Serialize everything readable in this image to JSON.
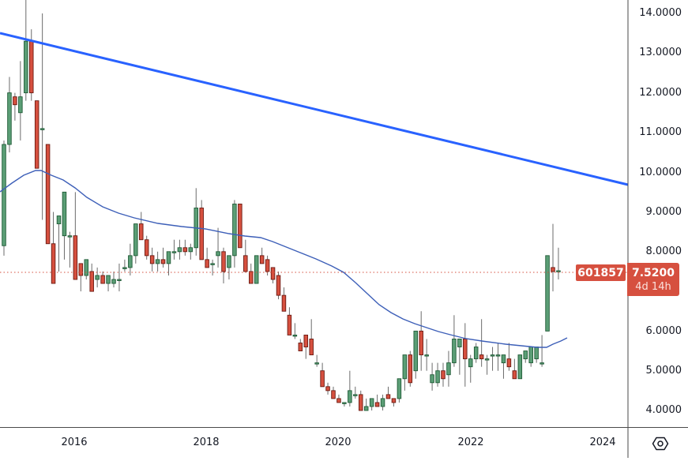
{
  "symbol": "601857",
  "last_price": "7.5200",
  "countdown": "4d 14h",
  "colors": {
    "up": "#5b9e76",
    "up_border": "#1f5b36",
    "down": "#d6503f",
    "down_border": "#6b1a12",
    "wick": "#6b6b6b",
    "trendline": "#2962ff",
    "ma": "#3d5fb8",
    "last_price_line": "#d6503f",
    "axis": "#4a4a4a"
  },
  "price_axis": {
    "labels": [
      "14.0000",
      "13.0000",
      "12.0000",
      "11.0000",
      "10.0000",
      "9.0000",
      "8.0000",
      "6.0000",
      "5.0000",
      "4.0000"
    ]
  },
  "time_axis": {
    "labels": [
      "2016",
      "2018",
      "2020",
      "2022",
      "2024"
    ]
  },
  "settings_icon": "gear-hexagon-icon",
  "chart_data": {
    "type": "candlestick",
    "title": "601857",
    "interval": "1M",
    "ylim": [
      3.7,
      14.3
    ],
    "y_ticks": [
      4,
      5,
      6,
      8,
      9,
      10,
      11,
      12,
      13,
      14
    ],
    "x_ticks": [
      "2016",
      "2018",
      "2020",
      "2022",
      "2024"
    ],
    "grid": false,
    "last_price": 7.52,
    "start": "2015-01",
    "candles": [
      [
        8.15,
        10.8,
        7.9,
        10.7
      ],
      [
        10.7,
        12.4,
        10.5,
        12.0
      ],
      [
        11.9,
        12.0,
        11.3,
        11.7
      ],
      [
        11.5,
        12.8,
        10.8,
        11.9
      ],
      [
        12.0,
        14.4,
        11.8,
        13.3
      ],
      [
        13.3,
        13.6,
        11.8,
        12.0
      ],
      [
        11.8,
        11.7,
        10.9,
        10.1
      ],
      [
        11.1,
        14.0,
        8.8,
        11.1
      ],
      [
        10.7,
        9.0,
        8.3,
        8.2
      ],
      [
        8.2,
        9.0,
        7.2,
        7.2
      ],
      [
        8.7,
        8.4,
        7.5,
        8.9
      ],
      [
        8.4,
        8.2,
        7.8,
        9.5
      ],
      [
        8.4,
        8.5,
        7.6,
        8.4
      ],
      [
        8.4,
        9.5,
        8.0,
        7.3
      ],
      [
        7.7,
        7.7,
        7.0,
        7.4
      ],
      [
        7.4,
        7.6,
        7.3,
        7.8
      ],
      [
        7.5,
        7.7,
        7.3,
        7.0
      ],
      [
        7.3,
        7.6,
        7.1,
        7.4
      ],
      [
        7.4,
        7.5,
        7.2,
        7.2
      ],
      [
        7.2,
        7.3,
        7.0,
        7.4
      ],
      [
        7.2,
        7.5,
        7.1,
        7.3
      ],
      [
        7.3,
        7.7,
        7.0,
        7.3
      ],
      [
        7.6,
        7.8,
        7.5,
        7.6
      ],
      [
        7.6,
        8.2,
        7.4,
        7.9
      ],
      [
        7.9,
        8.5,
        7.7,
        8.7
      ],
      [
        8.7,
        9.0,
        8.3,
        8.3
      ],
      [
        8.3,
        8.4,
        7.8,
        7.9
      ],
      [
        7.9,
        8.1,
        7.5,
        7.7
      ],
      [
        7.7,
        8.0,
        7.5,
        7.8
      ],
      [
        7.8,
        8.1,
        7.6,
        7.7
      ],
      [
        7.7,
        7.9,
        7.4,
        8.0
      ],
      [
        8.0,
        8.3,
        7.8,
        8.0
      ],
      [
        8.0,
        8.3,
        7.8,
        8.1
      ],
      [
        8.1,
        8.3,
        7.9,
        8.0
      ],
      [
        8.0,
        8.2,
        7.8,
        8.1
      ],
      [
        8.1,
        9.6,
        7.9,
        9.1
      ],
      [
        9.1,
        9.3,
        7.9,
        7.8
      ],
      [
        7.8,
        8.1,
        7.6,
        7.6
      ],
      [
        7.7,
        7.8,
        7.4,
        7.7
      ],
      [
        7.9,
        8.6,
        7.6,
        8.0
      ],
      [
        8.0,
        8.1,
        7.2,
        7.5
      ],
      [
        7.6,
        7.8,
        7.3,
        7.9
      ],
      [
        7.9,
        9.3,
        7.6,
        9.2
      ],
      [
        9.2,
        9.1,
        8.3,
        8.1
      ],
      [
        7.9,
        8.3,
        7.8,
        7.5
      ],
      [
        7.5,
        7.7,
        7.2,
        7.2
      ],
      [
        7.2,
        7.4,
        7.2,
        7.9
      ],
      [
        7.9,
        8.1,
        7.7,
        7.7
      ],
      [
        7.8,
        7.9,
        7.4,
        7.5
      ],
      [
        7.6,
        7.6,
        7.2,
        7.3
      ],
      [
        7.4,
        7.5,
        6.8,
        6.9
      ],
      [
        6.9,
        7.1,
        6.5,
        6.5
      ],
      [
        6.4,
        6.6,
        6.0,
        5.9
      ],
      [
        5.9,
        6.2,
        5.8,
        5.9
      ],
      [
        5.7,
        5.8,
        5.5,
        5.5
      ],
      [
        5.9,
        5.6,
        5.3,
        5.6
      ],
      [
        5.8,
        6.3,
        5.6,
        5.4
      ],
      [
        5.2,
        5.4,
        5.1,
        5.2
      ],
      [
        5.0,
        5.2,
        4.8,
        4.6
      ],
      [
        4.6,
        4.7,
        4.4,
        4.5
      ],
      [
        4.5,
        4.6,
        4.3,
        4.3
      ],
      [
        4.3,
        4.4,
        4.2,
        4.2
      ],
      [
        4.2,
        4.2,
        4.1,
        4.2
      ],
      [
        4.2,
        5.0,
        4.1,
        4.5
      ],
      [
        4.4,
        4.6,
        4.3,
        4.4
      ],
      [
        4.4,
        4.5,
        4.1,
        4.0
      ],
      [
        4.0,
        4.3,
        4.0,
        4.1
      ],
      [
        4.1,
        4.3,
        4.0,
        4.3
      ],
      [
        4.2,
        4.4,
        4.1,
        4.1
      ],
      [
        4.1,
        4.4,
        4.0,
        4.3
      ],
      [
        4.4,
        4.6,
        4.3,
        4.3
      ],
      [
        4.3,
        4.3,
        4.1,
        4.2
      ],
      [
        4.3,
        4.8,
        4.2,
        4.8
      ],
      [
        4.8,
        5.4,
        4.5,
        5.4
      ],
      [
        5.4,
        5.5,
        4.6,
        4.7
      ],
      [
        5.0,
        6.0,
        4.8,
        6.0
      ],
      [
        6.0,
        6.5,
        5.0,
        5.4
      ],
      [
        5.4,
        5.8,
        5.0,
        5.4
      ],
      [
        4.7,
        5.2,
        4.5,
        4.9
      ],
      [
        4.7,
        5.2,
        4.6,
        5.0
      ],
      [
        5.0,
        5.2,
        4.6,
        4.8
      ],
      [
        4.9,
        5.5,
        4.6,
        5.2
      ],
      [
        5.2,
        6.4,
        5.1,
        5.8
      ],
      [
        5.6,
        5.5,
        4.9,
        5.8
      ],
      [
        5.8,
        6.2,
        4.6,
        5.3
      ],
      [
        5.1,
        5.4,
        4.7,
        5.3
      ],
      [
        5.3,
        5.7,
        5.2,
        5.6
      ],
      [
        5.4,
        6.3,
        5.1,
        5.3
      ],
      [
        5.3,
        5.4,
        4.9,
        5.3
      ],
      [
        5.4,
        5.6,
        5.0,
        5.4
      ],
      [
        5.4,
        5.7,
        5.0,
        5.4
      ],
      [
        5.2,
        5.3,
        4.8,
        5.4
      ],
      [
        5.3,
        5.7,
        5.0,
        5.1
      ],
      [
        5.0,
        5.3,
        4.8,
        4.8
      ],
      [
        4.8,
        5.3,
        4.8,
        5.4
      ],
      [
        5.3,
        5.4,
        5.2,
        5.5
      ],
      [
        5.2,
        5.4,
        5.1,
        5.6
      ],
      [
        5.3,
        5.3,
        5.2,
        5.6
      ],
      [
        5.2,
        5.9,
        5.1,
        5.2
      ],
      [
        6.0,
        7.9,
        6.0,
        7.9
      ],
      [
        7.6,
        8.7,
        7.0,
        7.5
      ],
      [
        7.52,
        8.1,
        7.3,
        7.52
      ]
    ],
    "ma_line": "approx 50-period moving average: ~9.5 (2015) rising to ~10.1 (mid-2015), declining to ~8.1 (2018), ~6.0 (2021), ~5.6 (2022-23), rising to ~5.8 (2023)",
    "trendline": {
      "from": {
        "x": "2014-12",
        "y": 13.5
      },
      "to": {
        "x": "2024-02",
        "y": 9.7
      }
    }
  }
}
